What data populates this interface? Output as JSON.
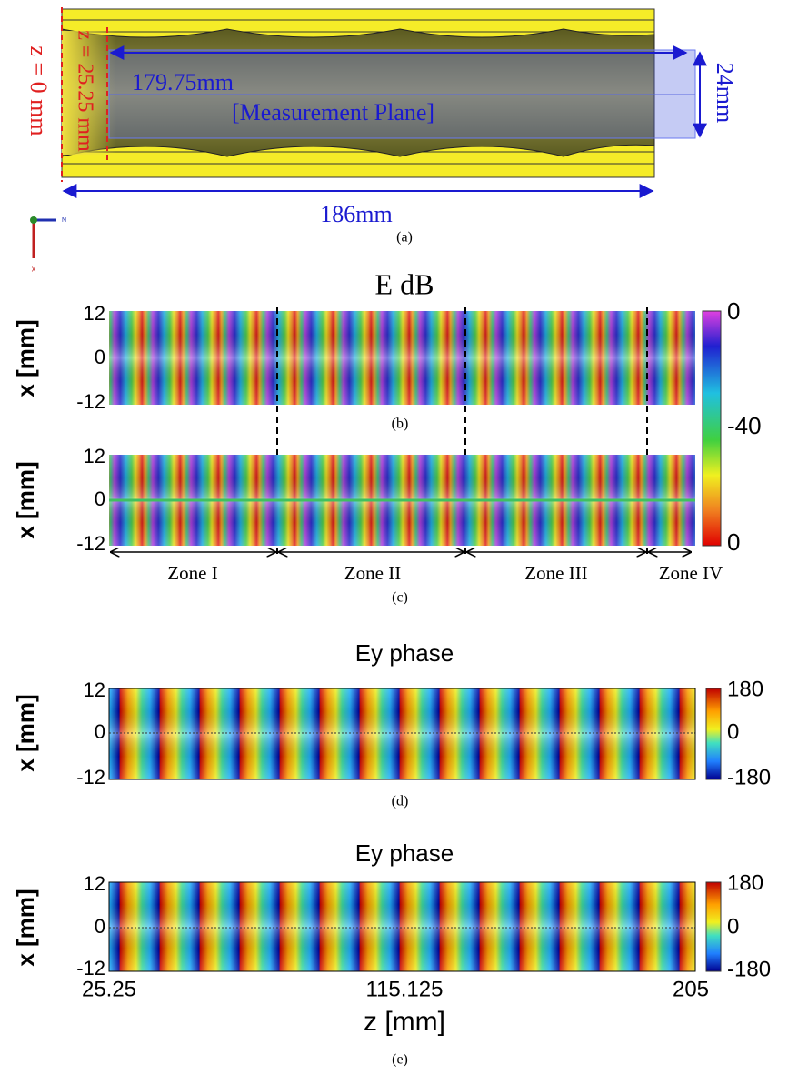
{
  "panel_a": {
    "z0_label": "z = 0 mm",
    "z_start_label": "z = 25.25 mm",
    "length_label": "179.75mm",
    "plane_label": "[Measurement Plane]",
    "width_label": "24mm",
    "total_label": "186mm",
    "axis_n": "N",
    "axis_x": "x",
    "caption": "(a)"
  },
  "panel_b": {
    "title": "E dB",
    "ylabel": "x [mm]",
    "yticks": [
      "12",
      "0",
      "-12"
    ],
    "caption": "(b)",
    "colorbar_labels": [
      "0",
      "-40",
      "0"
    ]
  },
  "panel_c": {
    "ylabel": "x [mm]",
    "yticks": [
      "12",
      "0",
      "-12"
    ],
    "zones": [
      "Zone I",
      "Zone II",
      "Zone III",
      "Zone IV"
    ],
    "caption": "(c)"
  },
  "panel_d": {
    "title": "Ey phase",
    "ylabel": "x [mm]",
    "yticks": [
      "12",
      "0",
      "-12"
    ],
    "colorbar_labels": [
      "180",
      "0",
      "-180"
    ],
    "caption": "(d)"
  },
  "panel_e": {
    "title": "Ey phase",
    "ylabel": "x [mm]",
    "yticks": [
      "12",
      "0",
      "-12"
    ],
    "xticks": [
      "25.25",
      "115.125",
      "205"
    ],
    "xlabel": "z [mm]",
    "colorbar_labels": [
      "180",
      "0",
      "-180"
    ],
    "caption": "(e)"
  }
}
